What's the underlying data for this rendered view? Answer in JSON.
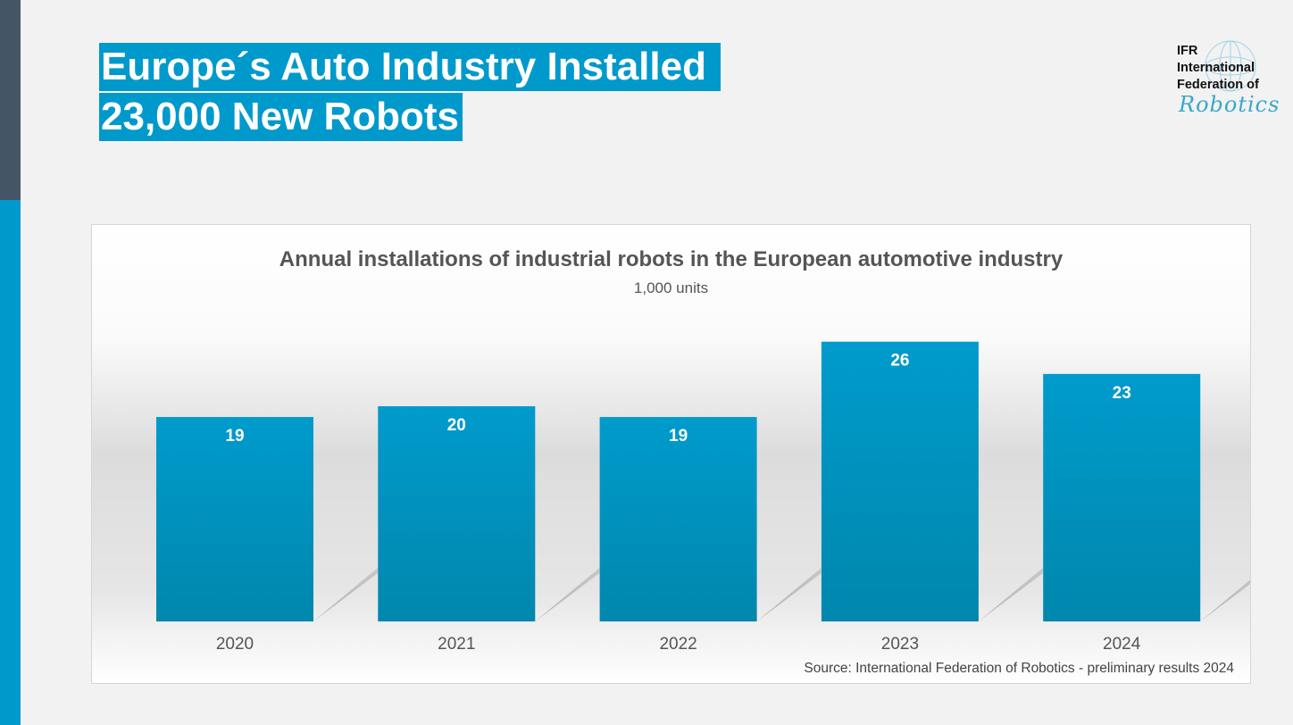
{
  "slide": {
    "title_line1": "Europe´s Auto Industry Installed ",
    "title_line2": "23,000 New Robots"
  },
  "logo": {
    "line1": "IFR",
    "line2": "International",
    "line3": "Federation of",
    "line4": "Robotics"
  },
  "colors": {
    "bar": "#0095c6",
    "title_bg": "#0099cc",
    "sidebar_dark": "#445566"
  },
  "chart_data": {
    "type": "bar",
    "title": "Annual installations of industrial robots in the European automotive industry",
    "subtitle": "1,000 units",
    "categories": [
      "2020",
      "2021",
      "2022",
      "2023",
      "2024"
    ],
    "values": [
      19,
      20,
      19,
      26,
      23
    ],
    "data_labels": [
      "19",
      "20",
      "19",
      "26",
      "23"
    ],
    "source": "Source: International Federation of Robotics - preliminary results 2024",
    "grid": false,
    "legend": "none"
  }
}
